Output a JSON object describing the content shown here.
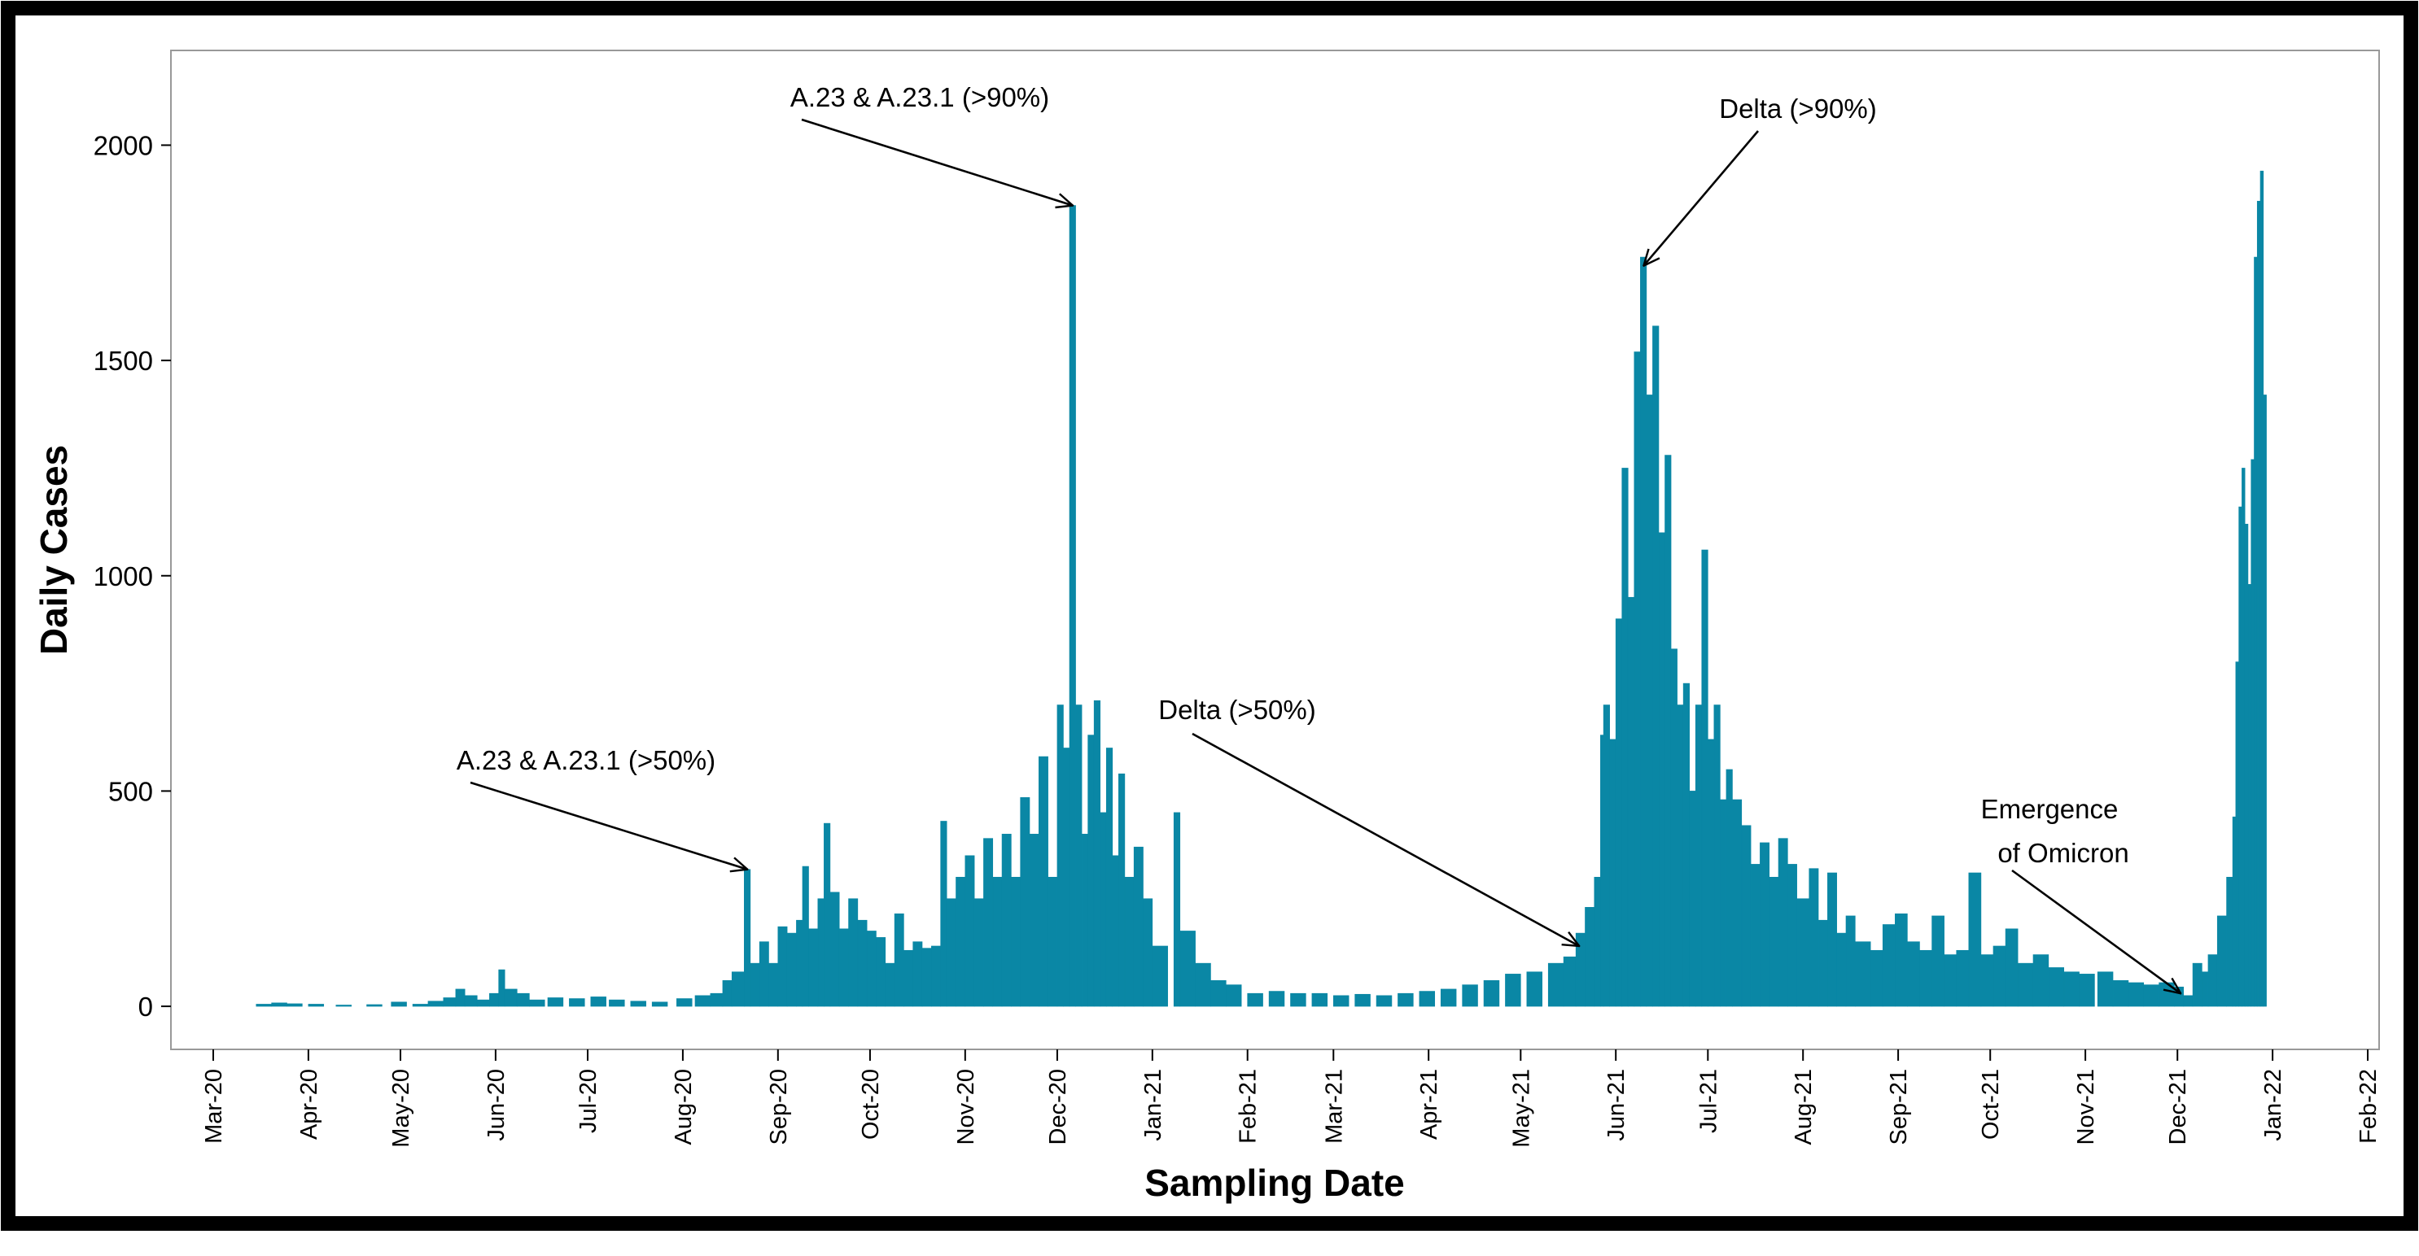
{
  "colors": {
    "bar": "#0a87a5",
    "axis": "#000000",
    "frame": "#000000",
    "panel_border": "#999999"
  },
  "chart_data": {
    "type": "bar",
    "ylabel": "Daily Cases",
    "xlabel": "Sampling Date",
    "ylim": [
      -100,
      2220
    ],
    "yticks": [
      0,
      500,
      1000,
      1500,
      2000
    ],
    "xlim": [
      "2020-03-01",
      "2022-02-01"
    ],
    "xtick_labels": [
      "Mar-20",
      "Apr-20",
      "May-20",
      "Jun-20",
      "Jul-20",
      "Aug-20",
      "Sep-20",
      "Oct-20",
      "Nov-20",
      "Dec-20",
      "Jan-21",
      "Feb-21",
      "Mar-21",
      "Apr-21",
      "May-21",
      "Jun-21",
      "Jul-21",
      "Aug-21",
      "Sep-21",
      "Oct-21",
      "Nov-21",
      "Dec-21",
      "Jan-22",
      "Feb-22"
    ],
    "series": [
      {
        "name": "Daily Cases",
        "points": [
          [
            "2020-03-15",
            5
          ],
          [
            "2020-03-20",
            8
          ],
          [
            "2020-03-25",
            6
          ],
          [
            "2020-04-01",
            5
          ],
          [
            "2020-04-10",
            3
          ],
          [
            "2020-04-20",
            4
          ],
          [
            "2020-04-28",
            10
          ],
          [
            "2020-05-05",
            5
          ],
          [
            "2020-05-10",
            12
          ],
          [
            "2020-05-15",
            20
          ],
          [
            "2020-05-19",
            40
          ],
          [
            "2020-05-22",
            25
          ],
          [
            "2020-05-26",
            15
          ],
          [
            "2020-05-30",
            30
          ],
          [
            "2020-06-02",
            85
          ],
          [
            "2020-06-04",
            40
          ],
          [
            "2020-06-08",
            30
          ],
          [
            "2020-06-12",
            15
          ],
          [
            "2020-06-18",
            20
          ],
          [
            "2020-06-25",
            18
          ],
          [
            "2020-07-02",
            22
          ],
          [
            "2020-07-08",
            15
          ],
          [
            "2020-07-15",
            12
          ],
          [
            "2020-07-22",
            10
          ],
          [
            "2020-07-30",
            18
          ],
          [
            "2020-08-05",
            25
          ],
          [
            "2020-08-10",
            30
          ],
          [
            "2020-08-14",
            60
          ],
          [
            "2020-08-17",
            80
          ],
          [
            "2020-08-21",
            318
          ],
          [
            "2020-08-23",
            100
          ],
          [
            "2020-08-26",
            150
          ],
          [
            "2020-08-29",
            100
          ],
          [
            "2020-09-01",
            185
          ],
          [
            "2020-09-04",
            170
          ],
          [
            "2020-09-07",
            200
          ],
          [
            "2020-09-09",
            325
          ],
          [
            "2020-09-11",
            180
          ],
          [
            "2020-09-14",
            250
          ],
          [
            "2020-09-16",
            425
          ],
          [
            "2020-09-18",
            265
          ],
          [
            "2020-09-21",
            180
          ],
          [
            "2020-09-24",
            250
          ],
          [
            "2020-09-27",
            200
          ],
          [
            "2020-09-30",
            175
          ],
          [
            "2020-10-03",
            160
          ],
          [
            "2020-10-06",
            100
          ],
          [
            "2020-10-09",
            215
          ],
          [
            "2020-10-12",
            130
          ],
          [
            "2020-10-15",
            150
          ],
          [
            "2020-10-18",
            135
          ],
          [
            "2020-10-21",
            140
          ],
          [
            "2020-10-24",
            430
          ],
          [
            "2020-10-26",
            250
          ],
          [
            "2020-10-29",
            300
          ],
          [
            "2020-11-01",
            350
          ],
          [
            "2020-11-04",
            250
          ],
          [
            "2020-11-07",
            390
          ],
          [
            "2020-11-10",
            300
          ],
          [
            "2020-11-13",
            400
          ],
          [
            "2020-11-16",
            300
          ],
          [
            "2020-11-19",
            485
          ],
          [
            "2020-11-22",
            400
          ],
          [
            "2020-11-25",
            580
          ],
          [
            "2020-11-28",
            300
          ],
          [
            "2020-12-01",
            700
          ],
          [
            "2020-12-03",
            600
          ],
          [
            "2020-12-05",
            1860
          ],
          [
            "2020-12-07",
            700
          ],
          [
            "2020-12-09",
            400
          ],
          [
            "2020-12-11",
            630
          ],
          [
            "2020-12-13",
            710
          ],
          [
            "2020-12-15",
            450
          ],
          [
            "2020-12-17",
            600
          ],
          [
            "2020-12-19",
            350
          ],
          [
            "2020-12-21",
            540
          ],
          [
            "2020-12-23",
            300
          ],
          [
            "2020-12-26",
            370
          ],
          [
            "2020-12-29",
            250
          ],
          [
            "2021-01-01",
            140
          ],
          [
            "2021-01-08",
            450
          ],
          [
            "2021-01-10",
            175
          ],
          [
            "2021-01-15",
            100
          ],
          [
            "2021-01-20",
            60
          ],
          [
            "2021-01-25",
            50
          ],
          [
            "2021-02-01",
            30
          ],
          [
            "2021-02-08",
            35
          ],
          [
            "2021-02-15",
            30
          ],
          [
            "2021-02-22",
            30
          ],
          [
            "2021-03-01",
            25
          ],
          [
            "2021-03-08",
            28
          ],
          [
            "2021-03-15",
            25
          ],
          [
            "2021-03-22",
            30
          ],
          [
            "2021-03-29",
            35
          ],
          [
            "2021-04-05",
            40
          ],
          [
            "2021-04-12",
            50
          ],
          [
            "2021-04-19",
            60
          ],
          [
            "2021-04-26",
            75
          ],
          [
            "2021-05-03",
            80
          ],
          [
            "2021-05-10",
            100
          ],
          [
            "2021-05-15",
            115
          ],
          [
            "2021-05-19",
            170
          ],
          [
            "2021-05-22",
            230
          ],
          [
            "2021-05-25",
            300
          ],
          [
            "2021-05-27",
            630
          ],
          [
            "2021-05-28",
            700
          ],
          [
            "2021-05-30",
            620
          ],
          [
            "2021-06-01",
            900
          ],
          [
            "2021-06-03",
            1250
          ],
          [
            "2021-06-05",
            950
          ],
          [
            "2021-06-07",
            1520
          ],
          [
            "2021-06-09",
            1740
          ],
          [
            "2021-06-11",
            1420
          ],
          [
            "2021-06-13",
            1580
          ],
          [
            "2021-06-15",
            1100
          ],
          [
            "2021-06-17",
            1280
          ],
          [
            "2021-06-19",
            830
          ],
          [
            "2021-06-21",
            700
          ],
          [
            "2021-06-23",
            750
          ],
          [
            "2021-06-25",
            500
          ],
          [
            "2021-06-27",
            700
          ],
          [
            "2021-06-29",
            1060
          ],
          [
            "2021-07-01",
            620
          ],
          [
            "2021-07-03",
            700
          ],
          [
            "2021-07-05",
            480
          ],
          [
            "2021-07-07",
            550
          ],
          [
            "2021-07-09",
            480
          ],
          [
            "2021-07-12",
            420
          ],
          [
            "2021-07-15",
            330
          ],
          [
            "2021-07-18",
            380
          ],
          [
            "2021-07-21",
            300
          ],
          [
            "2021-07-24",
            390
          ],
          [
            "2021-07-27",
            330
          ],
          [
            "2021-07-30",
            250
          ],
          [
            "2021-08-03",
            320
          ],
          [
            "2021-08-06",
            200
          ],
          [
            "2021-08-09",
            310
          ],
          [
            "2021-08-12",
            170
          ],
          [
            "2021-08-15",
            210
          ],
          [
            "2021-08-18",
            150
          ],
          [
            "2021-08-23",
            130
          ],
          [
            "2021-08-27",
            190
          ],
          [
            "2021-08-31",
            215
          ],
          [
            "2021-09-04",
            150
          ],
          [
            "2021-09-08",
            130
          ],
          [
            "2021-09-12",
            210
          ],
          [
            "2021-09-16",
            120
          ],
          [
            "2021-09-20",
            130
          ],
          [
            "2021-09-24",
            310
          ],
          [
            "2021-09-28",
            120
          ],
          [
            "2021-10-02",
            140
          ],
          [
            "2021-10-06",
            180
          ],
          [
            "2021-10-10",
            100
          ],
          [
            "2021-10-15",
            120
          ],
          [
            "2021-10-20",
            90
          ],
          [
            "2021-10-25",
            80
          ],
          [
            "2021-10-30",
            75
          ],
          [
            "2021-11-05",
            80
          ],
          [
            "2021-11-10",
            60
          ],
          [
            "2021-11-15",
            55
          ],
          [
            "2021-11-20",
            50
          ],
          [
            "2021-11-25",
            55
          ],
          [
            "2021-11-30",
            45
          ],
          [
            "2021-12-03",
            25
          ],
          [
            "2021-12-06",
            100
          ],
          [
            "2021-12-09",
            80
          ],
          [
            "2021-12-11",
            120
          ],
          [
            "2021-12-14",
            210
          ],
          [
            "2021-12-17",
            300
          ],
          [
            "2021-12-19",
            440
          ],
          [
            "2021-12-20",
            800
          ],
          [
            "2021-12-21",
            1160
          ],
          [
            "2021-12-22",
            1250
          ],
          [
            "2021-12-23",
            1120
          ],
          [
            "2021-12-24",
            980
          ],
          [
            "2021-12-25",
            1270
          ],
          [
            "2021-12-26",
            1740
          ],
          [
            "2021-12-27",
            1870
          ],
          [
            "2021-12-28",
            1940
          ],
          [
            "2021-12-29",
            1420
          ]
        ]
      }
    ],
    "annotations": [
      {
        "lines": [
          "A.23 & A.23.1 (>50%)"
        ],
        "date": "2020-08-21",
        "value": 318
      },
      {
        "lines": [
          "A.23 & A.23.1 (>90%)"
        ],
        "date": "2020-12-05",
        "value": 1860
      },
      {
        "lines": [
          "Delta (>50%)"
        ],
        "date": "2021-05-19",
        "value": 140
      },
      {
        "lines": [
          "Delta (>90%)"
        ],
        "date": "2021-06-09",
        "value": 1720
      },
      {
        "lines": [
          "Emergence",
          "of Omicron"
        ],
        "date": "2021-12-01",
        "value": 30
      }
    ]
  }
}
